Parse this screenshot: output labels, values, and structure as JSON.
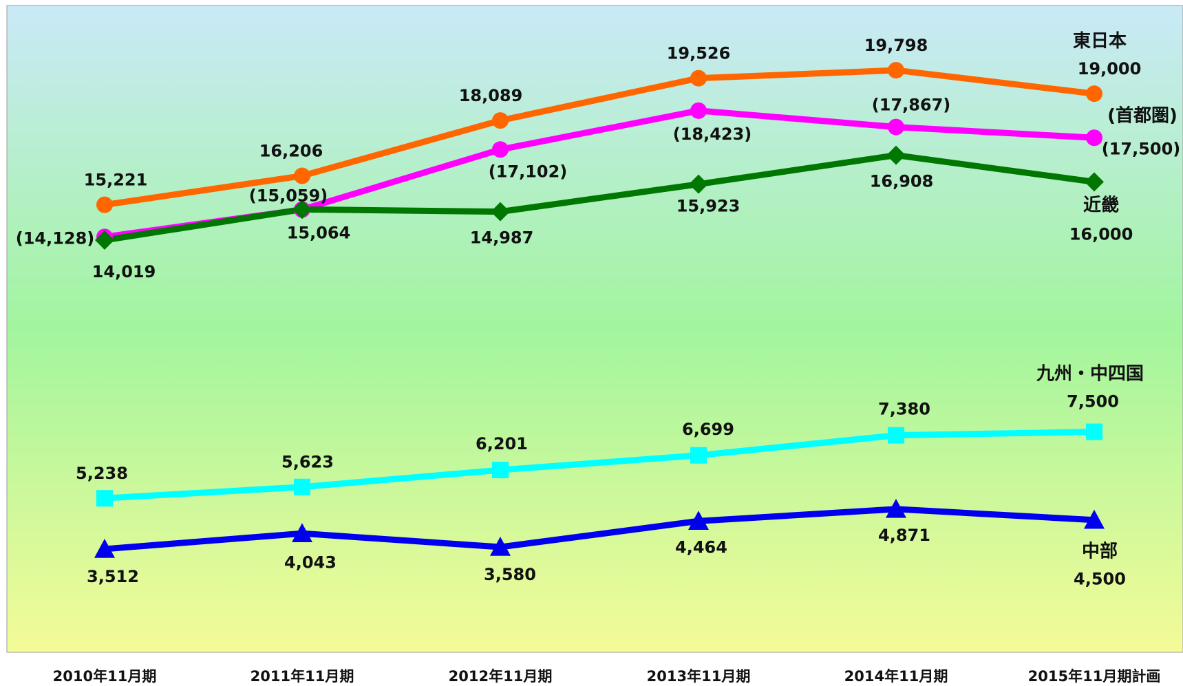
{
  "chart_data": {
    "type": "line",
    "categories": [
      "2010年11月期",
      "2011年11月期",
      "2012年11月期",
      "2013年11月期",
      "2014年11月期",
      "2015年11月期計画"
    ],
    "ylim": [
      0,
      22000
    ],
    "grid": false,
    "legend": "none",
    "series": [
      {
        "name": "東日本",
        "color": "#ff6600",
        "marker": "circle",
        "values": [
          15221,
          16206,
          18089,
          19526,
          19798,
          19000
        ],
        "labels": [
          "15,221",
          "16,206",
          "18,089",
          "19,526",
          "19,798",
          "19,000"
        ]
      },
      {
        "name": "(首都圏)",
        "color": "#ff00ff",
        "marker": "circle",
        "values": [
          14128,
          15059,
          17102,
          18423,
          17867,
          17500
        ],
        "labels": [
          "(14,128)",
          "(15,059)",
          "(17,102)",
          "(18,423)",
          "(17,867)",
          "(17,500)"
        ]
      },
      {
        "name": "近畿",
        "color": "#007700",
        "marker": "diamond",
        "values": [
          14019,
          15064,
          14987,
          15923,
          16908,
          16000
        ],
        "labels": [
          "14,019",
          "15,064",
          "14,987",
          "15,923",
          "16,908",
          "16,000"
        ]
      },
      {
        "name": "九州・中四国",
        "color": "#00ffff",
        "marker": "square",
        "values": [
          5238,
          5623,
          6201,
          6699,
          7380,
          7500
        ],
        "labels": [
          "5,238",
          "5,623",
          "6,201",
          "6,699",
          "7,380",
          "7,500"
        ]
      },
      {
        "name": "中部",
        "color": "#0000ee",
        "marker": "triangle",
        "values": [
          3512,
          4043,
          3580,
          4464,
          4871,
          4500
        ],
        "labels": [
          "3,512",
          "4,043",
          "3,580",
          "4,464",
          "4,871",
          "4,500"
        ]
      }
    ]
  }
}
